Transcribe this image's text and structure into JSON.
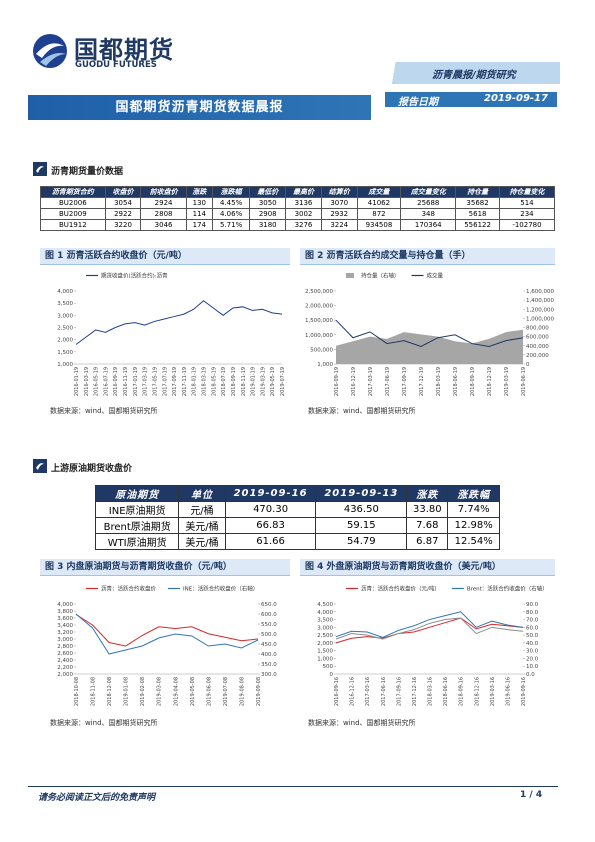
{
  "header": {
    "logo_cn": "国都期货",
    "logo_en": "GUODU FUTURES",
    "report_type": "沥青晨报/期货研究",
    "title": "国都期货沥青期货数据晨报",
    "date_label": "报告日期",
    "date": "2019-09-17"
  },
  "section1": {
    "title": "沥青期货量价数据",
    "table": {
      "columns": [
        "沥青期货合约",
        "收盘价",
        "前收盘价",
        "涨跌",
        "涨跌幅",
        "最低价",
        "最高价",
        "结算价",
        "成交量",
        "成交量变化",
        "持仓量",
        "持仓量变化"
      ],
      "rows": [
        [
          "BU2006",
          "3054",
          "2924",
          "130",
          "4.45%",
          "3050",
          "3136",
          "3070",
          "41062",
          "25688",
          "35682",
          "514"
        ],
        [
          "BU2009",
          "2922",
          "2808",
          "114",
          "4.06%",
          "2908",
          "3002",
          "2932",
          "872",
          "348",
          "5618",
          "234"
        ],
        [
          "BU1912",
          "3220",
          "3046",
          "174",
          "5.71%",
          "3180",
          "3276",
          "3224",
          "934508",
          "170364",
          "556122",
          "-102780"
        ]
      ]
    }
  },
  "section2": {
    "title": "上游原油期货收盘价",
    "table": {
      "columns": [
        "原油期货",
        "单位",
        "2019-09-16",
        "2019-09-13",
        "涨跌",
        "涨跌幅"
      ],
      "rows": [
        [
          "INE原油期货",
          "元/桶",
          "470.30",
          "436.50",
          "33.80",
          "7.74%"
        ],
        [
          "Brent原油期货",
          "美元/桶",
          "66.83",
          "59.15",
          "7.68",
          "12.98%"
        ],
        [
          "WTI原油期货",
          "美元/桶",
          "61.66",
          "54.79",
          "6.87",
          "12.54%"
        ]
      ]
    }
  },
  "chart_data": [
    {
      "type": "line",
      "title": "图 1 沥青活跃合约收盘价（元/吨）",
      "source": "数据来源：wind、国都期货研究所",
      "categories": [
        "2016-01-19",
        "2016-03-19",
        "2016-05-19",
        "2016-07-19",
        "2016-09-19",
        "2016-11-19",
        "2017-01-19",
        "2017-03-19",
        "2017-05-19",
        "2017-07-19",
        "2017-09-19",
        "2017-11-19",
        "2018-01-19",
        "2018-03-19",
        "2018-05-19",
        "2018-07-19",
        "2018-09-19",
        "2018-11-19",
        "2019-01-19",
        "2019-03-19",
        "2019-05-19",
        "2019-07-19"
      ],
      "series": [
        {
          "name": "期货收盘价(活跃合约):沥青",
          "color": "#1f3f8f",
          "values": [
            1800,
            2100,
            2400,
            2300,
            2500,
            2650,
            2700,
            2600,
            2750,
            2850,
            2950,
            3050,
            3250,
            3600,
            3300,
            3000,
            3300,
            3350,
            3200,
            3250,
            3100,
            3050
          ]
        }
      ],
      "ylim": [
        1000,
        4000
      ],
      "yticks": [
        {
          "value": 1000,
          "label": "1,000"
        },
        {
          "value": 1500,
          "label": "1,500"
        },
        {
          "value": 2000,
          "label": "2,000"
        },
        {
          "value": 2500,
          "label": "2,500"
        },
        {
          "value": 3000,
          "label": "3,000"
        },
        {
          "value": 3500,
          "label": "3,500"
        },
        {
          "value": 4000,
          "label": "4,000"
        }
      ]
    },
    {
      "type": "line",
      "title": "图 2 沥青活跃合约成交量与持仓量（手）",
      "source": "数据来源：wind、国都期货研究所",
      "categories": [
        "2016-09-19",
        "2016-12-19",
        "2017-03-19",
        "2017-06-19",
        "2017-09-19",
        "2017-12-19",
        "2018-03-19",
        "2018-06-19",
        "2018-09-19",
        "2018-12-19",
        "2019-03-19",
        "2019-06-19"
      ],
      "series": [
        {
          "name": "持仓量（右轴）",
          "color": "#a6a6a6",
          "style": "area",
          "axis": "y2",
          "values": [
            400000,
            500000,
            600000,
            550000,
            700000,
            650000,
            600000,
            500000,
            450000,
            550000,
            700000,
            750000
          ]
        },
        {
          "name": "成交量",
          "color": "#1f3864",
          "values": [
            1500000,
            900000,
            1100000,
            700000,
            800000,
            600000,
            900000,
            1000000,
            700000,
            600000,
            800000,
            900000
          ]
        }
      ],
      "ylim": [
        1000,
        2500000
      ],
      "yticks": [
        {
          "value": 1000,
          "label": "1,000"
        },
        {
          "value": 500000,
          "label": "500,000"
        },
        {
          "value": 1000000,
          "label": "1,000,000"
        },
        {
          "value": 1500000,
          "label": "1,500,000"
        },
        {
          "value": 2000000,
          "label": "2,000,000"
        },
        {
          "value": 2500000,
          "label": "2,500,000"
        }
      ],
      "y2lim": [
        0,
        1600000
      ],
      "y2ticks": [
        0,
        {
          "value": 200000,
          "label": "200,000"
        },
        {
          "value": 400000,
          "label": "400,000"
        },
        {
          "value": 600000,
          "label": "600,000"
        },
        {
          "value": 800000,
          "label": "800,000"
        },
        {
          "value": 1000000,
          "label": "1,000,000"
        },
        {
          "value": 1200000,
          "label": "1,200,000"
        },
        {
          "value": 1400000,
          "label": "1,400,000"
        },
        {
          "value": 1600000,
          "label": "1,600,000"
        }
      ]
    },
    {
      "type": "line",
      "title": "图 3 内盘原油期货与沥青期货收盘价（元/吨）",
      "source": "数据来源：wind、国都期货研究所",
      "categories": [
        "2018-10-08",
        "2018-11-08",
        "2018-12-08",
        "2019-01-08",
        "2019-02-08",
        "2019-03-08",
        "2019-04-08",
        "2019-05-08",
        "2019-06-08",
        "2019-07-08",
        "2019-08-08",
        "2019-09-08"
      ],
      "series": [
        {
          "name": "沥青：活跃合约收盘价",
          "color": "#d62728",
          "values": [
            3700,
            3400,
            2900,
            2800,
            3100,
            3350,
            3300,
            3350,
            3150,
            3050,
            2950,
            3000
          ]
        },
        {
          "name": "INE：活跃合约收盘价（右轴）",
          "color": "#2e75b6",
          "axis": "y2",
          "values": [
            600,
            530,
            400,
            420,
            440,
            480,
            500,
            490,
            440,
            450,
            430,
            470
          ]
        }
      ],
      "ylim": [
        2000,
        4000
      ],
      "yticks": [
        {
          "value": 2000,
          "label": "2,000"
        },
        {
          "value": 2200,
          "label": "2,200"
        },
        {
          "value": 2400,
          "label": "2,400"
        },
        {
          "value": 2600,
          "label": "2,600"
        },
        {
          "value": 2800,
          "label": "2,800"
        },
        {
          "value": 3000,
          "label": "3,000"
        },
        {
          "value": 3200,
          "label": "3,200"
        },
        {
          "value": 3400,
          "label": "3,400"
        },
        {
          "value": 3600,
          "label": "3,600"
        },
        {
          "value": 3800,
          "label": "3,800"
        },
        {
          "value": 4000,
          "label": "4,000"
        }
      ],
      "y2lim": [
        300,
        650
      ],
      "y2ticks": [
        {
          "value": 300,
          "label": "300.0"
        },
        {
          "value": 350,
          "label": "350.0"
        },
        {
          "value": 400,
          "label": "400.0"
        },
        {
          "value": 450,
          "label": "450.0"
        },
        {
          "value": 500,
          "label": "500.0"
        },
        {
          "value": 550,
          "label": "550.0"
        },
        {
          "value": 600,
          "label": "600.0"
        },
        {
          "value": 650,
          "label": "650.0"
        }
      ]
    },
    {
      "type": "line",
      "title": "图 4 外盘原油期货与沥青期货收盘价（美元/吨）",
      "source": "数据来源：wind、国都期货研究所",
      "categories": [
        "2016-09-16",
        "2016-12-16",
        "2017-03-16",
        "2017-06-16",
        "2017-09-16",
        "2017-12-16",
        "2018-03-16",
        "2018-06-16",
        "2018-09-16",
        "2018-12-16",
        "2019-03-16",
        "2019-06-16",
        "2019-09-16"
      ],
      "series": [
        {
          "name": "沥青：活跃合约收盘价（元/吨）",
          "color": "#d62728",
          "values": [
            2000,
            2300,
            2400,
            2300,
            2600,
            2700,
            3000,
            3300,
            3600,
            2900,
            3200,
            3100,
            3000
          ]
        },
        {
          "name": "Brent：活跃合约收盘价（右轴）",
          "color": "#2e75b6",
          "axis": "y2",
          "values": [
            48,
            55,
            54,
            47,
            56,
            62,
            70,
            75,
            80,
            60,
            68,
            63,
            60
          ]
        },
        {
          "name": "WTI：活跃合约收盘价（右轴）",
          "color": "#8c8c8c",
          "axis": "y2",
          "values": [
            45,
            52,
            50,
            45,
            52,
            57,
            65,
            70,
            72,
            52,
            60,
            57,
            55
          ]
        }
      ],
      "ylim": [
        0,
        4500
      ],
      "yticks": [
        0,
        {
          "value": 500,
          "label": "500"
        },
        {
          "value": 1000,
          "label": "1,000"
        },
        {
          "value": 1500,
          "label": "1,500"
        },
        {
          "value": 2000,
          "label": "2,000"
        },
        {
          "value": 2500,
          "label": "2,500"
        },
        {
          "value": 3000,
          "label": "3,000"
        },
        {
          "value": 3500,
          "label": "3,500"
        },
        {
          "value": 4000,
          "label": "4,000"
        },
        {
          "value": 4500,
          "label": "4,500"
        }
      ],
      "y2lim": [
        0,
        90
      ],
      "y2ticks": [
        {
          "value": 0,
          "label": "0.0"
        },
        {
          "value": 10,
          "label": "10.0"
        },
        {
          "value": 20,
          "label": "20.0"
        },
        {
          "value": 30,
          "label": "30.0"
        },
        {
          "value": 40,
          "label": "40.0"
        },
        {
          "value": 50,
          "label": "50.0"
        },
        {
          "value": 60,
          "label": "60.0"
        },
        {
          "value": 70,
          "label": "70.0"
        },
        {
          "value": 80,
          "label": "80.0"
        },
        {
          "value": 90,
          "label": "90.0"
        }
      ]
    }
  ],
  "footer": {
    "disclaimer": "请务必阅读正文后的免责声明",
    "page": "1 / 4"
  }
}
